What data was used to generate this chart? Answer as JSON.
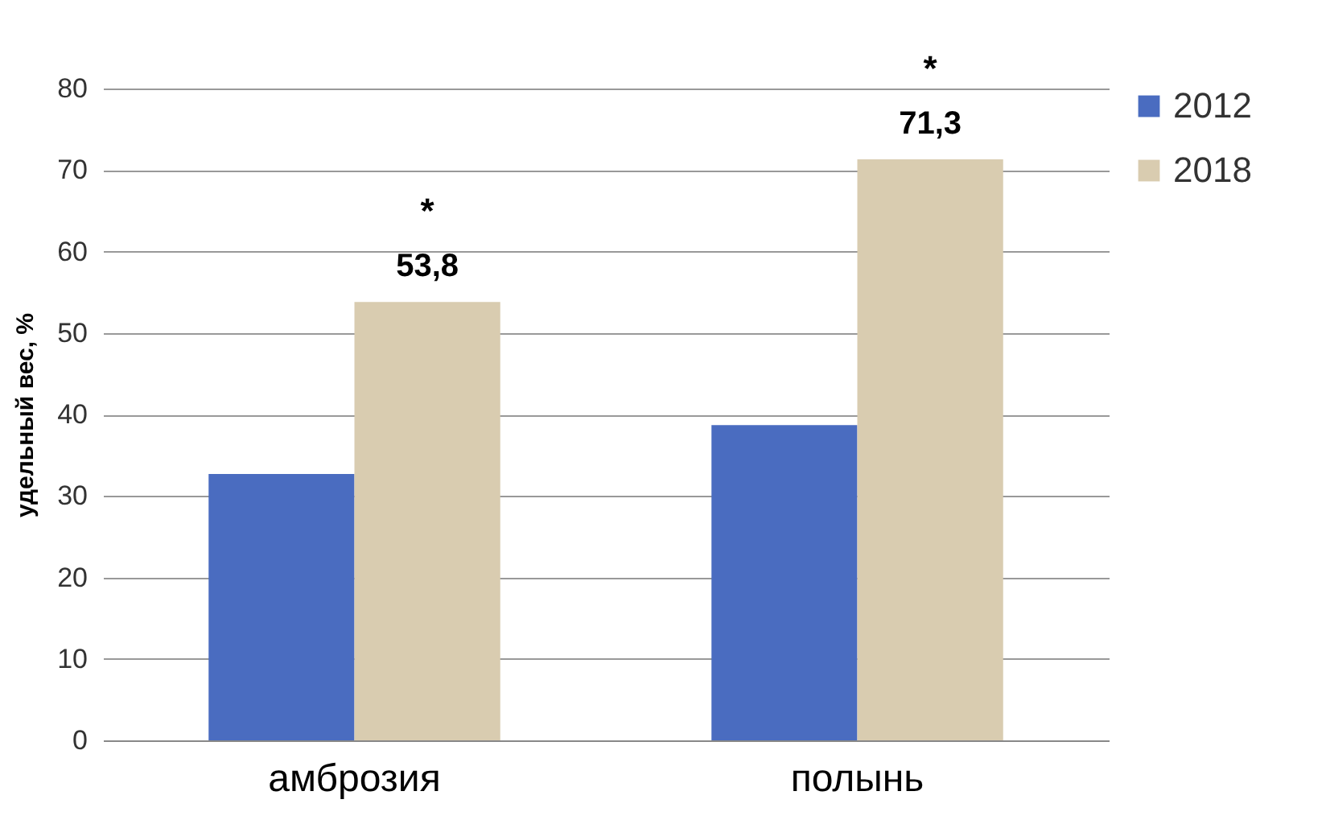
{
  "chart_data": {
    "type": "bar",
    "ylabel": "удельный вес, %",
    "categories": [
      "амброзия",
      "полынь"
    ],
    "series": [
      {
        "name": "2012",
        "color": "#4a6cc0",
        "values": [
          32.7,
          38.7
        ]
      },
      {
        "name": "2018",
        "color": "#d9ccb0",
        "values": [
          53.8,
          71.3
        ],
        "value_labels": [
          "53,8",
          "71,3"
        ]
      }
    ],
    "annotations": [
      {
        "text": "*",
        "x": "амброзия",
        "y": 53.8
      },
      {
        "text": "*",
        "x": "полынь",
        "y": 71.3
      }
    ],
    "ylim": [
      0,
      80
    ],
    "yticks": [
      0,
      10,
      20,
      30,
      40,
      50,
      60,
      70,
      80
    ],
    "grid": "y",
    "legend": "right"
  }
}
